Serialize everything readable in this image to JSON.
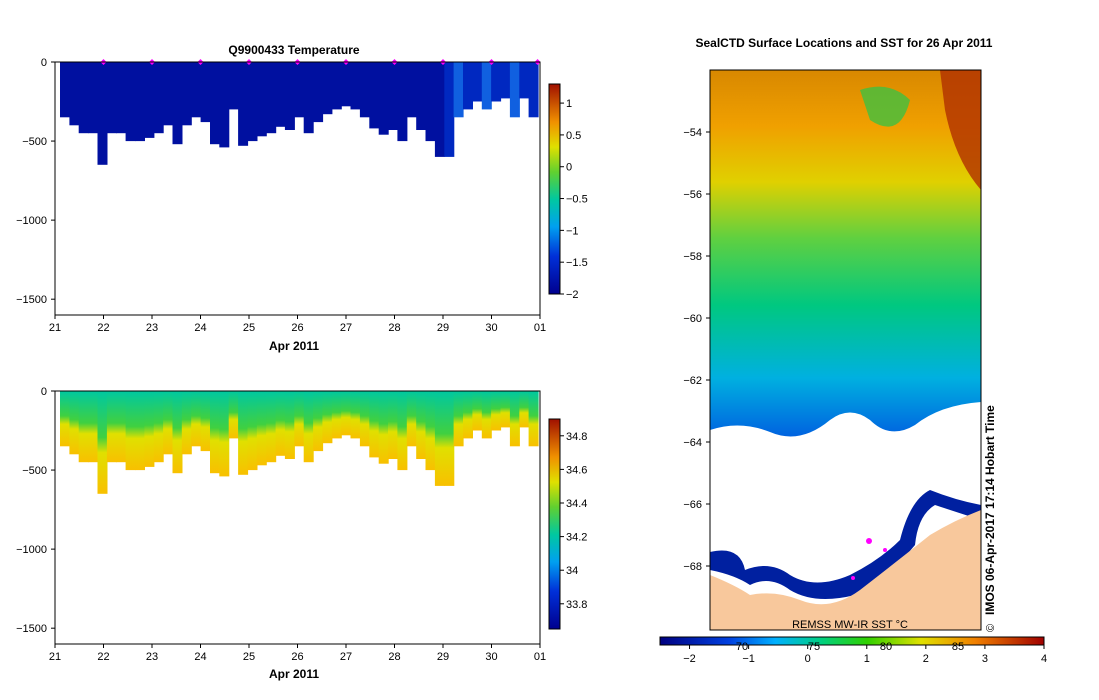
{
  "chart_data": [
    {
      "type": "heatmap",
      "title": "Q9900433  Temperature",
      "xlabel": "Apr 2011",
      "ylabel": "",
      "x_ticks": [
        "21",
        "22",
        "23",
        "24",
        "25",
        "26",
        "27",
        "28",
        "29",
        "30",
        "01"
      ],
      "y_ticks": [
        "0",
        "-500",
        "-1000",
        "-1500"
      ],
      "ylim": [
        -1600,
        0
      ],
      "colorbar": {
        "min": -2.0,
        "max": 1.3,
        "ticks": [
          "1",
          "0.5",
          "0",
          "-0.5",
          "-1",
          "-1.5",
          "-2"
        ]
      },
      "profile_markers_day": [
        22,
        23,
        24,
        25,
        26,
        27,
        28,
        29,
        30,
        30.95
      ],
      "profile_depths_m": [
        350,
        400,
        450,
        450,
        650,
        450,
        450,
        500,
        500,
        480,
        450,
        400,
        520,
        400,
        350,
        380,
        520,
        540,
        300,
        530,
        500,
        470,
        450,
        410,
        430,
        350,
        450,
        380,
        330,
        300,
        280,
        300,
        350,
        420,
        460,
        430,
        500,
        350,
        430,
        500,
        600,
        600,
        350,
        300,
        250,
        300,
        250,
        230,
        350,
        230,
        350
      ]
    },
    {
      "type": "heatmap",
      "title": "",
      "xlabel": "Apr 2011",
      "ylabel": "",
      "x_ticks": [
        "21",
        "22",
        "23",
        "24",
        "25",
        "26",
        "27",
        "28",
        "29",
        "30",
        "01"
      ],
      "y_ticks": [
        "0",
        "-500",
        "-1000",
        "-1500"
      ],
      "ylim": [
        -1600,
        0
      ],
      "colorbar": {
        "min": 33.65,
        "max": 34.9,
        "ticks": [
          "34.8",
          "34.6",
          "34.4",
          "34.2",
          "34",
          "33.8"
        ]
      },
      "profile_depths_m": [
        350,
        400,
        450,
        450,
        650,
        450,
        450,
        500,
        500,
        480,
        450,
        400,
        520,
        400,
        350,
        380,
        520,
        540,
        300,
        530,
        500,
        470,
        450,
        410,
        430,
        350,
        450,
        380,
        330,
        300,
        280,
        300,
        350,
        420,
        460,
        430,
        500,
        350,
        430,
        500,
        600,
        600,
        350,
        300,
        250,
        300,
        250,
        230,
        350,
        230,
        350
      ]
    },
    {
      "type": "heatmap",
      "title": "SealCTD Surface Locations and SST for 26 Apr 2011",
      "xlabel": "",
      "ylabel": "",
      "lat_ticks": [
        "-54",
        "-56",
        "-58",
        "-60",
        "-62",
        "-64",
        "-66",
        "-68"
      ],
      "lon_ticks_partial": [
        "70",
        "75",
        "80",
        "85"
      ],
      "colorbar": {
        "min": -2.5,
        "max": 4.0,
        "ticks": [
          "-2",
          "-1",
          "0",
          "1",
          "2",
          "3",
          "4"
        ],
        "label": "REMSS MW-IR SST °C"
      },
      "credit": "IMOS 06-Apr-2017 17:14 Hobart Time",
      "copyright": "©"
    }
  ]
}
